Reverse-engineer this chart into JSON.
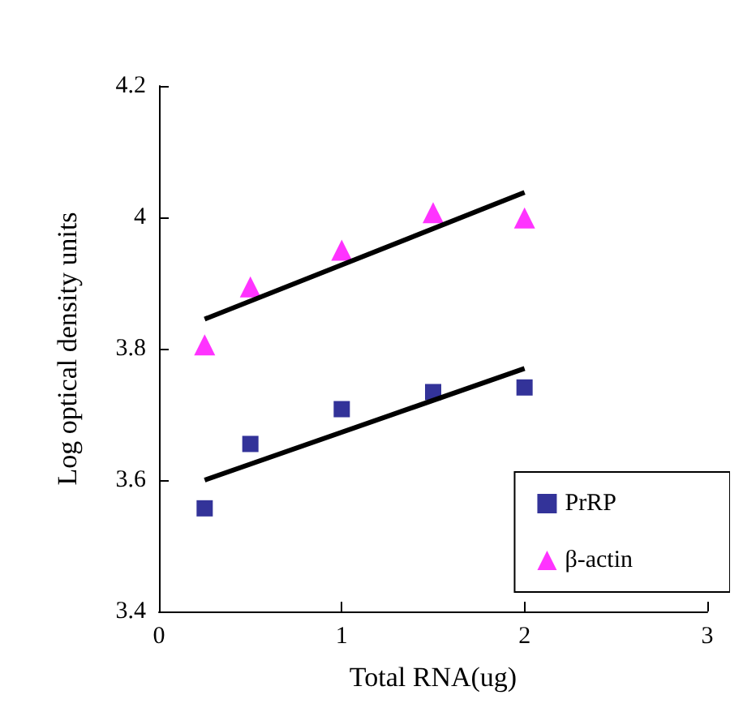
{
  "chart_data": {
    "type": "scatter",
    "xlabel": "Total RNA(ug)",
    "ylabel": "Log optical density units",
    "xlim": [
      0,
      3
    ],
    "xticks": [
      0,
      1,
      2,
      3
    ],
    "ylim": [
      3.4,
      4.2
    ],
    "yticks": [
      3.4,
      3.6,
      3.8,
      4,
      4.2
    ],
    "grid": false,
    "legend": "bottom right",
    "series": [
      {
        "name": "PrRP",
        "color": "#000080",
        "marker": "square",
        "x": [
          0.25,
          0.5,
          1,
          1.5,
          2
        ],
        "values": [
          3.557,
          3.655,
          3.708,
          3.734,
          3.741
        ]
      },
      {
        "name": "β-actin",
        "color": "#ff00ff",
        "marker": "triangle",
        "x": [
          0.25,
          0.5,
          1,
          1.5,
          2
        ],
        "values": [
          3.806,
          3.894,
          3.95,
          4.007,
          3.999
        ]
      },
      {
        "type": "line",
        "color": "#000000",
        "marker": "none",
        "line_style": "solid",
        "x": [
          0.25,
          2
        ],
        "values": [
          3.6,
          3.77
        ]
      },
      {
        "type": "line",
        "color": "#000000",
        "marker": "none",
        "line_style": "solid",
        "x": [
          0.25,
          2
        ],
        "values": [
          3.845,
          4.038
        ]
      }
    ]
  }
}
